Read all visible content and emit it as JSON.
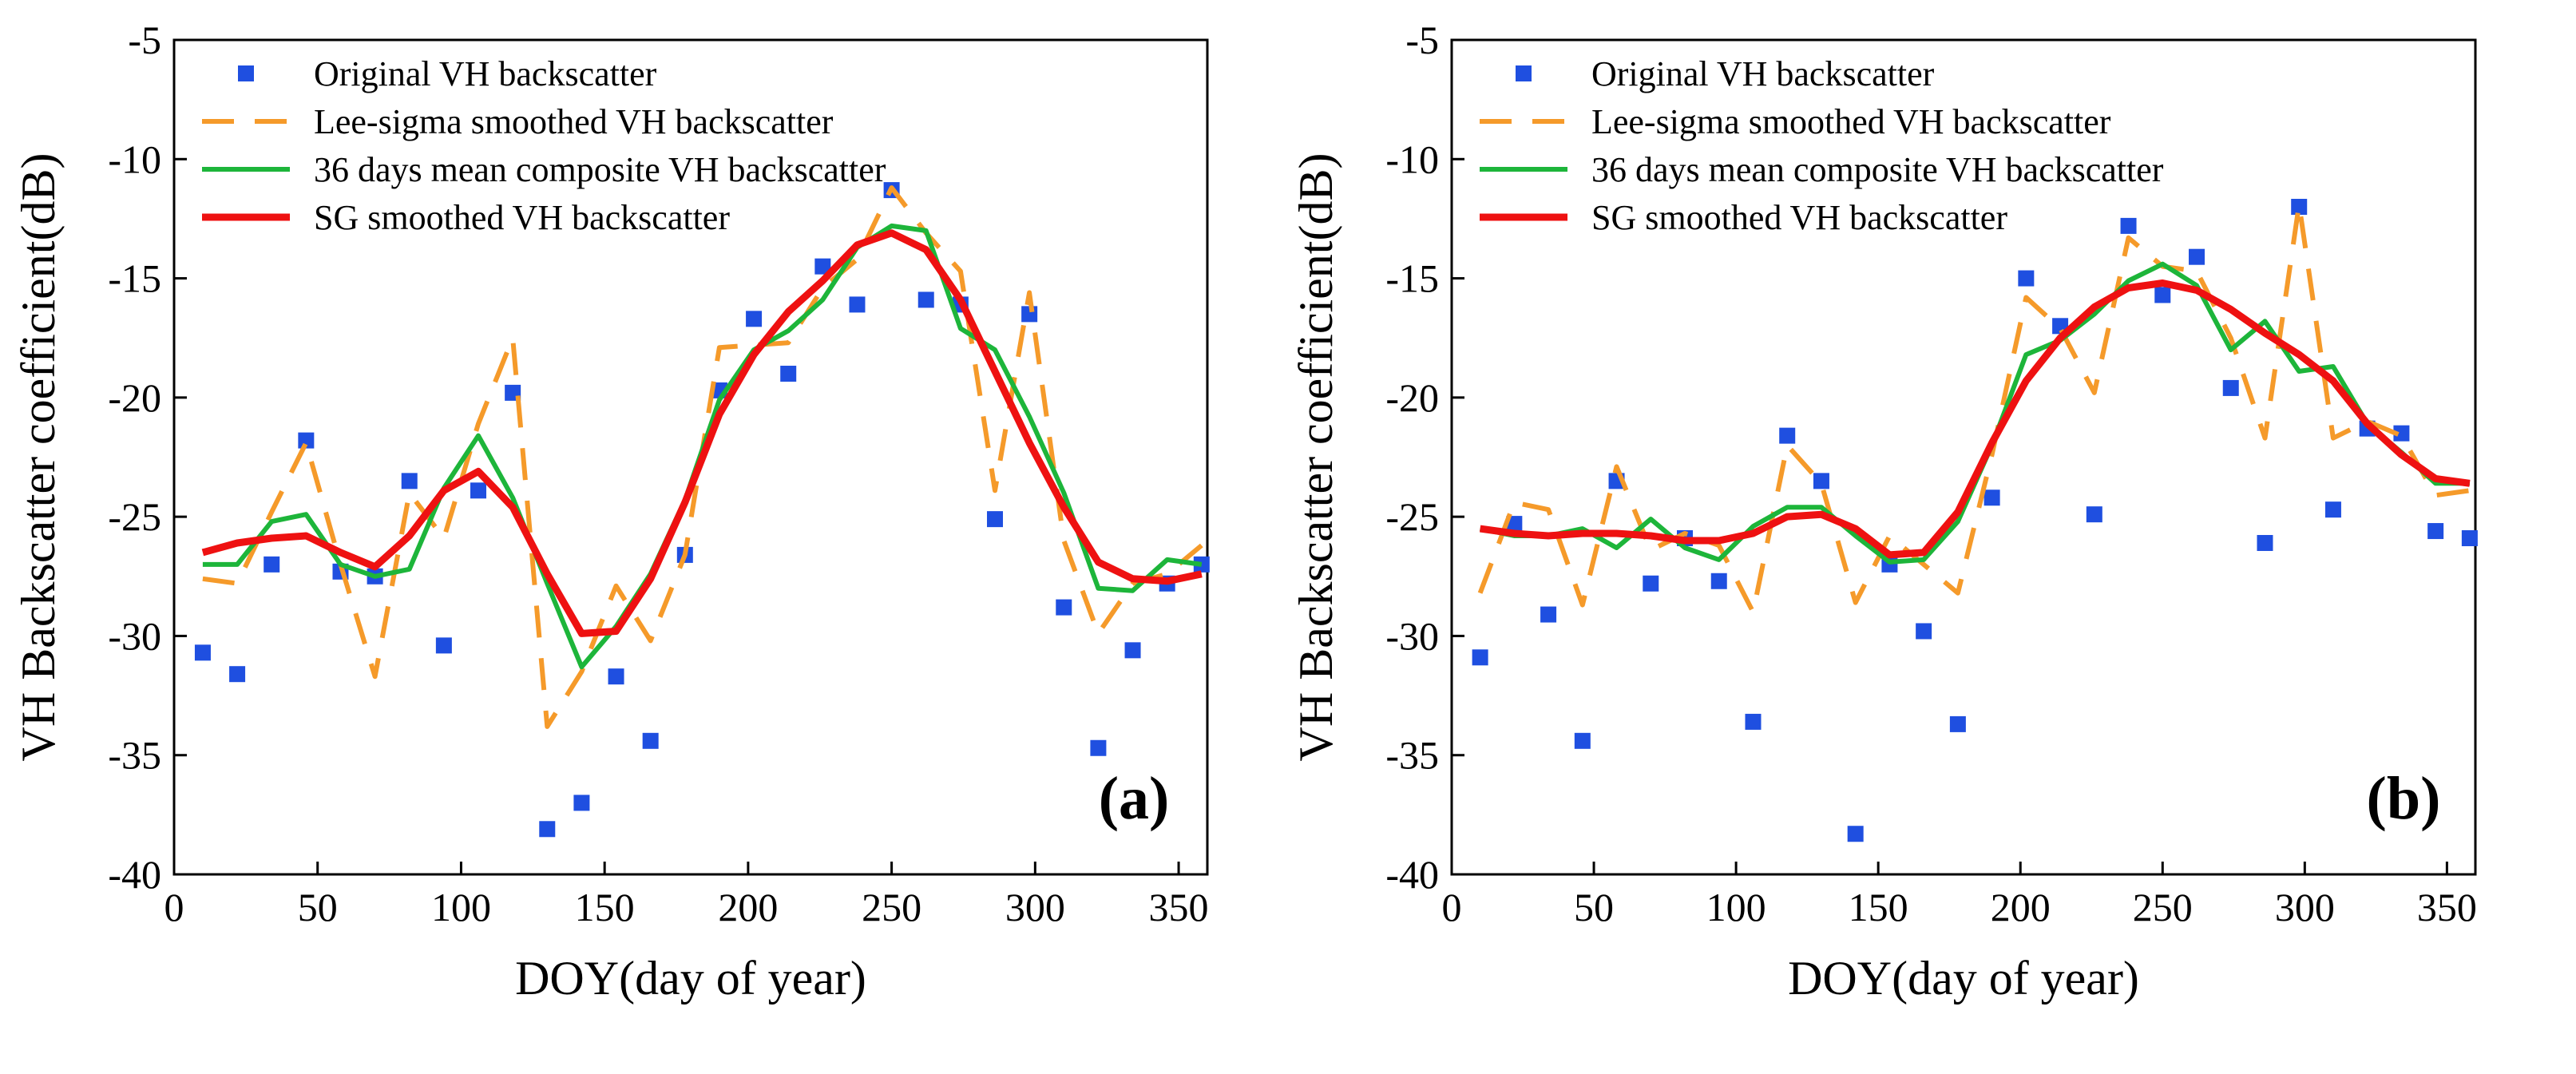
{
  "chart_data": [
    {
      "type": "line",
      "panel_label": "(a)",
      "xlabel": "DOY(day of year)",
      "ylabel": "VH Backscatter coefficient(dB)",
      "xlim": [
        0,
        360
      ],
      "ylim": [
        -40,
        -5
      ],
      "xticks": [
        0,
        50,
        100,
        150,
        200,
        250,
        300,
        350
      ],
      "yticks": [
        -40,
        -35,
        -30,
        -25,
        -20,
        -15,
        -10,
        -5
      ],
      "legend_position": "top-left",
      "series": [
        {
          "name": "Original VH backscatter",
          "style": "markers",
          "color": "#1f4fe0",
          "x": [
            10,
            22,
            34,
            46,
            58,
            70,
            82,
            94,
            106,
            118,
            130,
            142,
            154,
            166,
            178,
            190,
            202,
            214,
            226,
            238,
            250,
            262,
            274,
            286,
            298,
            310,
            322,
            334,
            346,
            358
          ],
          "y": [
            -30.7,
            -31.6,
            -27.0,
            -21.8,
            -27.3,
            -27.5,
            -23.5,
            -30.4,
            -23.9,
            -19.8,
            -38.1,
            -37.0,
            -31.7,
            -34.4,
            -26.6,
            -19.7,
            -16.7,
            -19.0,
            -14.5,
            -16.1,
            -11.3,
            -15.9,
            -16.1,
            -25.1,
            -16.5,
            -28.8,
            -34.7,
            -30.6,
            -27.8,
            -27.0
          ]
        },
        {
          "name": "Lee-sigma smoothed VH backscatter",
          "style": "dashed",
          "color": "#f59a2a",
          "x": [
            10,
            22,
            34,
            46,
            58,
            70,
            82,
            94,
            106,
            118,
            130,
            142,
            154,
            166,
            178,
            190,
            202,
            214,
            226,
            238,
            250,
            262,
            274,
            286,
            298,
            310,
            322,
            334,
            346,
            358
          ],
          "y": [
            -27.6,
            -27.8,
            -24.8,
            -21.9,
            -27.0,
            -31.7,
            -24.0,
            -25.9,
            -21.1,
            -17.5,
            -33.8,
            -31.5,
            -27.9,
            -30.2,
            -26.6,
            -17.9,
            -17.8,
            -17.7,
            -15.4,
            -14.2,
            -11.2,
            -13.1,
            -14.7,
            -23.9,
            -15.6,
            -26.0,
            -29.9,
            -27.8,
            -27.4,
            -26.2
          ]
        },
        {
          "name": "36 days mean composite VH backscatter",
          "style": "line",
          "color": "#1db53a",
          "x": [
            10,
            22,
            34,
            46,
            58,
            70,
            82,
            94,
            106,
            118,
            130,
            142,
            154,
            166,
            178,
            190,
            202,
            214,
            226,
            238,
            250,
            262,
            274,
            286,
            298,
            310,
            322,
            334,
            346,
            358
          ],
          "y": [
            -27.0,
            -27.0,
            -25.2,
            -24.9,
            -27.0,
            -27.5,
            -27.2,
            -23.8,
            -21.6,
            -24.2,
            -27.8,
            -31.3,
            -29.6,
            -27.4,
            -24.3,
            -20.1,
            -18.0,
            -17.2,
            -15.9,
            -13.7,
            -12.8,
            -13.0,
            -17.1,
            -18.0,
            -20.8,
            -24.0,
            -28.0,
            -28.1,
            -26.8,
            -27.0
          ]
        },
        {
          "name": "SG smoothed VH backscatter",
          "style": "line",
          "color": "#ee1111",
          "x": [
            10,
            22,
            34,
            46,
            58,
            70,
            82,
            94,
            106,
            118,
            130,
            142,
            154,
            166,
            178,
            190,
            202,
            214,
            226,
            238,
            250,
            262,
            274,
            286,
            298,
            310,
            322,
            334,
            346,
            358
          ],
          "y": [
            -26.5,
            -26.1,
            -25.9,
            -25.8,
            -26.5,
            -27.1,
            -25.8,
            -23.9,
            -23.1,
            -24.6,
            -27.4,
            -29.9,
            -29.8,
            -27.6,
            -24.4,
            -20.7,
            -18.2,
            -16.4,
            -15.1,
            -13.6,
            -13.1,
            -13.8,
            -15.9,
            -18.9,
            -21.9,
            -24.6,
            -26.9,
            -27.6,
            -27.7,
            -27.4
          ]
        }
      ]
    },
    {
      "type": "line",
      "panel_label": "(b)",
      "xlabel": "DOY(day of year)",
      "ylabel": "VH Backscatter coefficient(dB)",
      "xlim": [
        0,
        360
      ],
      "ylim": [
        -40,
        -5
      ],
      "xticks": [
        0,
        50,
        100,
        150,
        200,
        250,
        300,
        350
      ],
      "yticks": [
        -40,
        -35,
        -30,
        -25,
        -20,
        -15,
        -10,
        -5
      ],
      "legend_position": "top-left",
      "series": [
        {
          "name": "Original VH backscatter",
          "style": "markers",
          "color": "#1f4fe0",
          "x": [
            10,
            22,
            34,
            46,
            58,
            70,
            82,
            94,
            106,
            118,
            130,
            142,
            154,
            166,
            178,
            190,
            202,
            214,
            226,
            238,
            250,
            262,
            274,
            286,
            298,
            310,
            322,
            334,
            346,
            358
          ],
          "y": [
            -30.9,
            -25.3,
            -29.1,
            -34.4,
            -23.5,
            -27.8,
            -25.9,
            -27.7,
            -33.6,
            -21.6,
            -23.5,
            -38.3,
            -27.0,
            -29.8,
            -33.7,
            -24.2,
            -15.0,
            -17.0,
            -24.9,
            -12.8,
            -15.7,
            -14.1,
            -19.6,
            -26.1,
            -12.0,
            -24.7,
            -21.3,
            -21.5,
            -25.6,
            -25.9
          ]
        },
        {
          "name": "Lee-sigma smoothed VH backscatter",
          "style": "dashed",
          "color": "#f59a2a",
          "x": [
            10,
            22,
            34,
            46,
            58,
            70,
            82,
            94,
            106,
            118,
            130,
            142,
            154,
            166,
            178,
            190,
            202,
            214,
            226,
            238,
            250,
            262,
            274,
            286,
            298,
            310,
            322,
            334,
            346,
            358
          ],
          "y": [
            -28.2,
            -24.4,
            -24.7,
            -28.7,
            -22.9,
            -26.4,
            -25.7,
            -26.2,
            -29.0,
            -22.0,
            -23.6,
            -28.6,
            -25.8,
            -27.0,
            -28.2,
            -22.4,
            -15.8,
            -17.1,
            -19.8,
            -13.3,
            -14.5,
            -14.7,
            -17.5,
            -21.7,
            -11.9,
            -21.7,
            -21.0,
            -21.6,
            -24.1,
            -23.9
          ]
        },
        {
          "name": "36 days mean composite VH backscatter",
          "style": "line",
          "color": "#1db53a",
          "x": [
            10,
            22,
            34,
            46,
            58,
            70,
            82,
            94,
            106,
            118,
            130,
            142,
            154,
            166,
            178,
            190,
            202,
            214,
            226,
            238,
            250,
            262,
            274,
            286,
            298,
            310,
            322,
            334,
            346,
            358
          ],
          "y": [
            -25.5,
            -25.8,
            -25.8,
            -25.5,
            -26.3,
            -25.1,
            -26.3,
            -26.8,
            -25.4,
            -24.6,
            -24.6,
            -25.8,
            -26.9,
            -26.8,
            -25.2,
            -22.0,
            -18.2,
            -17.6,
            -16.5,
            -15.1,
            -14.4,
            -15.3,
            -18.0,
            -16.8,
            -18.9,
            -18.7,
            -21.1,
            -22.3,
            -23.6,
            -23.6
          ]
        },
        {
          "name": "SG smoothed VH backscatter",
          "style": "line",
          "color": "#ee1111",
          "x": [
            10,
            22,
            34,
            46,
            58,
            70,
            82,
            94,
            106,
            118,
            130,
            142,
            154,
            166,
            178,
            190,
            202,
            214,
            226,
            238,
            250,
            262,
            274,
            286,
            298,
            310,
            322,
            334,
            346,
            358
          ],
          "y": [
            -25.5,
            -25.7,
            -25.8,
            -25.7,
            -25.7,
            -25.8,
            -26.0,
            -26.0,
            -25.7,
            -25.0,
            -24.9,
            -25.5,
            -26.6,
            -26.5,
            -24.8,
            -21.9,
            -19.3,
            -17.5,
            -16.2,
            -15.4,
            -15.2,
            -15.5,
            -16.3,
            -17.3,
            -18.2,
            -19.3,
            -21.1,
            -22.4,
            -23.4,
            -23.6
          ]
        }
      ]
    }
  ]
}
